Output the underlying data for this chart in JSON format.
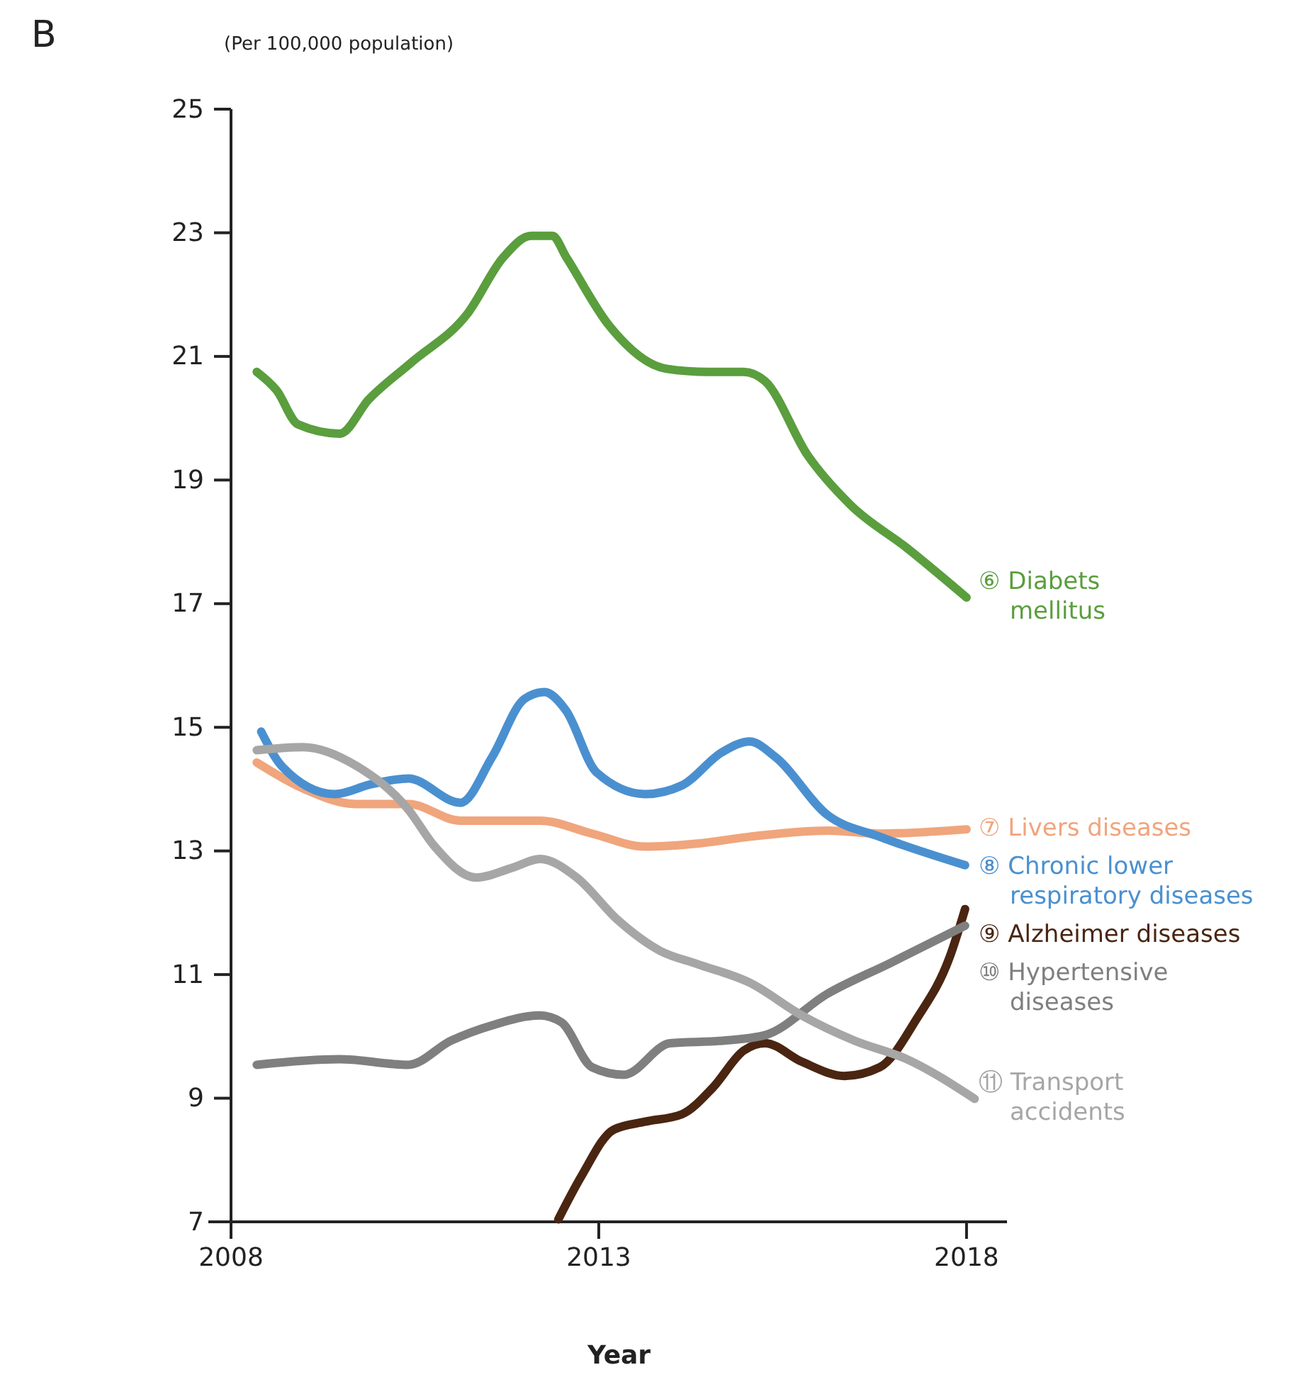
{
  "chart_data": {
    "type": "line",
    "ylabel": "(Per 100,000 population)",
    "xlabel": "Year",
    "annotations": [
      "B"
    ],
    "xlim": [
      2008,
      2018.55
    ],
    "xticks": [
      2008,
      2013,
      2018
    ],
    "ylim": [
      7,
      25
    ],
    "yticks": [
      7,
      9,
      11,
      13,
      15,
      17,
      19,
      21,
      23,
      25
    ],
    "grid": false,
    "marker": "none",
    "line_style": "solid",
    "series": [
      {
        "name": "⑥ Diabets\nmellitus",
        "color": "#5a9e3e",
        "x": [
          2008.35,
          2008.62,
          2008.91,
          2009.48,
          2009.87,
          2010.45,
          2011.22,
          2011.7,
          2012.08,
          2012.37,
          2012.56,
          2013.14,
          2013.92,
          2014.49,
          2014.97,
          2015.26,
          2015.84,
          2016.42,
          2017.19,
          2018
        ],
        "values": [
          20.75,
          20.45,
          19.9,
          19.75,
          20.3,
          20.9,
          21.7,
          22.6,
          22.95,
          22.95,
          22.6,
          21.5,
          20.8,
          20.75,
          20.75,
          20.6,
          19.4,
          18.6,
          17.9,
          17.1
        ]
      },
      {
        "name": "⑦ Livers diseases",
        "color": "#f0a57c",
        "x": [
          2008.35,
          2008.98,
          2009.7,
          2010.41,
          2011.12,
          2012.2,
          2012.91,
          2013.63,
          2014.34,
          2015.05,
          2016.11,
          2016.82,
          2018
        ],
        "values": [
          14.43,
          14.01,
          13.76,
          13.76,
          13.49,
          13.49,
          13.28,
          13.07,
          13.12,
          13.23,
          13.33,
          13.28,
          13.35
        ]
      },
      {
        "name": "⑧ Chronic lower\nrespiratory diseases",
        "color": "#4a90d0",
        "x": [
          2008.41,
          2008.7,
          2009.41,
          2009.91,
          2010.41,
          2011.12,
          2011.55,
          2011.99,
          2012.26,
          2012.55,
          2012.97,
          2013.63,
          2014.13,
          2014.68,
          2015.05,
          2015.4,
          2016.11,
          2016.82,
          2017.98
        ],
        "values": [
          14.93,
          14.36,
          13.92,
          14.08,
          14.17,
          13.78,
          14.52,
          15.46,
          15.57,
          15.28,
          14.27,
          13.92,
          14.06,
          14.6,
          14.77,
          14.52,
          13.58,
          13.23,
          12.77
        ]
      },
      {
        "name": "⑨ Alzheimer diseases",
        "color": "#4a2511",
        "x": [
          2012.45,
          2012.76,
          2013.2,
          2013.63,
          2014.13,
          2014.55,
          2014.97,
          2015.26,
          2015.76,
          2016.34,
          2016.82,
          2017.32,
          2017.77,
          2017.98
        ],
        "values": [
          7.04,
          7.73,
          8.49,
          8.62,
          8.74,
          9.17,
          9.77,
          9.89,
          9.59,
          9.36,
          9.5,
          10.28,
          11.28,
          12.06
        ]
      },
      {
        "name": "⑩ Hypertensive\ndiseases",
        "color": "#7f7f7f",
        "x": [
          2008.35,
          2009.48,
          2010.41,
          2010.99,
          2011.55,
          2012.2,
          2012.49,
          2012.91,
          2013.34,
          2013.97,
          2014.68,
          2015.26,
          2016.11,
          2016.97,
          2017.98
        ],
        "values": [
          9.54,
          9.63,
          9.54,
          9.93,
          10.18,
          10.34,
          10.23,
          9.5,
          9.38,
          9.89,
          9.93,
          10.02,
          10.69,
          11.19,
          11.79
        ]
      },
      {
        "name": "⑪ Transport\naccidents",
        "color": "#a6a6a6",
        "x": [
          2008.35,
          2008.98,
          2009.7,
          2010.41,
          2010.77,
          2011.33,
          2011.83,
          2012.2,
          2012.7,
          2013.26,
          2013.84,
          2014.34,
          2015.05,
          2015.76,
          2016.48,
          2017.19,
          2018.11
        ],
        "values": [
          14.63,
          14.68,
          14.38,
          13.67,
          13.07,
          12.57,
          12.73,
          12.87,
          12.57,
          11.88,
          11.38,
          11.17,
          10.87,
          10.34,
          9.93,
          9.63,
          8.99
        ]
      }
    ]
  }
}
